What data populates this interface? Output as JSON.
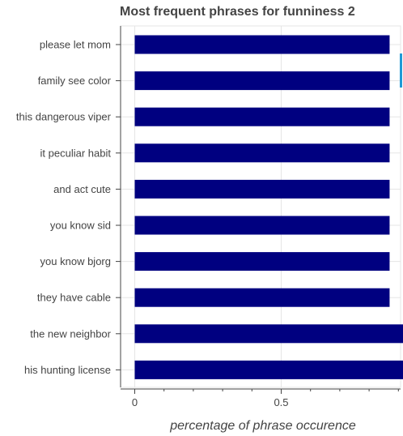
{
  "chart_data": {
    "type": "bar",
    "orientation": "horizontal",
    "title": "Most frequent phrases for funniness 2",
    "xlabel": "percentage of phrase occurence",
    "ylabel": "",
    "xlim": [
      -0.08,
      1.8
    ],
    "xticks": [
      0,
      0.5,
      1,
      1.5
    ],
    "grid": true,
    "categories": [
      "please let mom",
      "family see color",
      "this dangerous viper",
      "it peculiar habit",
      "and act cute",
      "you know sid",
      "you know bjorg",
      "they have cable",
      "the new neighbor",
      "his hunting license"
    ],
    "values": [
      0.87,
      0.87,
      0.87,
      0.87,
      0.87,
      0.87,
      0.87,
      0.87,
      1.74,
      1.74
    ],
    "bar_color": "#000080"
  }
}
